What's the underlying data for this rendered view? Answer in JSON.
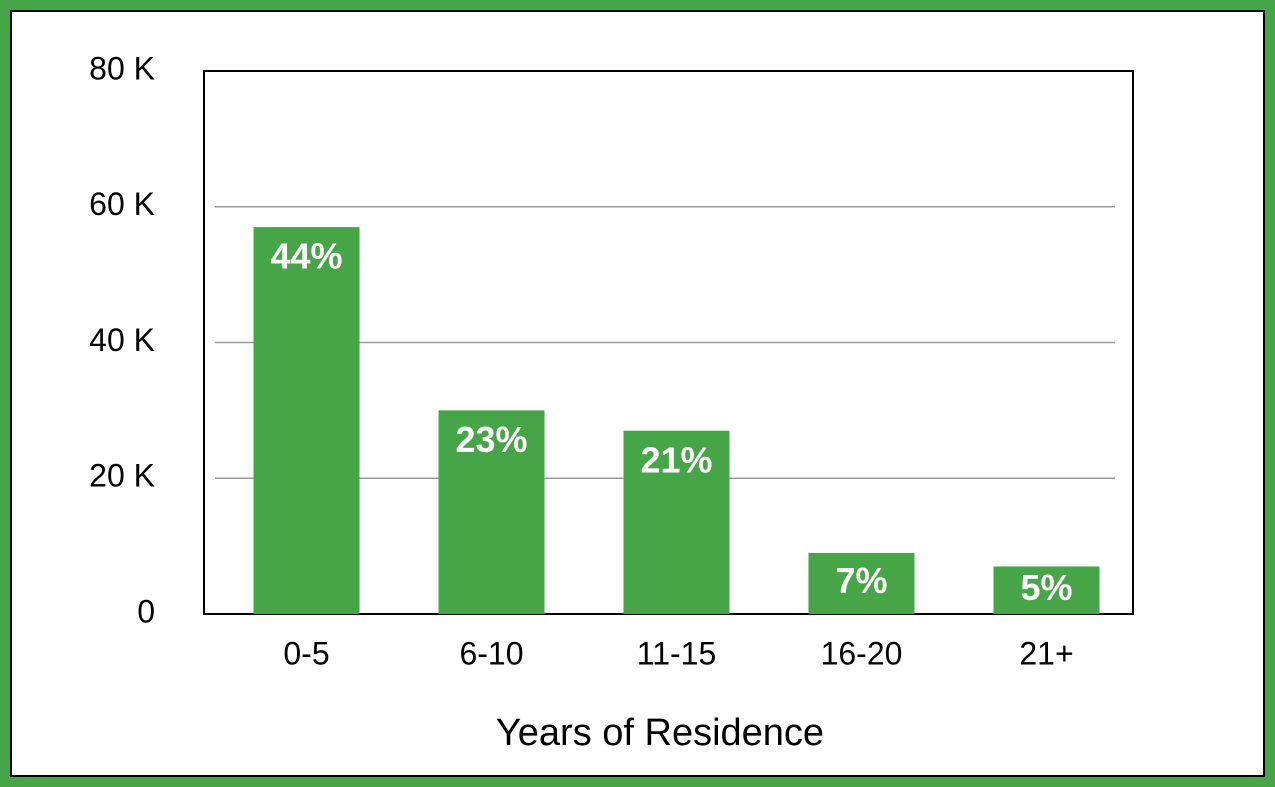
{
  "chart_data": {
    "type": "bar",
    "x_label": "Years of Residence",
    "categories": [
      "0-5",
      "6-10",
      "11-15",
      "16-20",
      "21+"
    ],
    "values": [
      57000,
      30000,
      27000,
      9000,
      7000
    ],
    "percent_labels": [
      "44%",
      "23%",
      "21%",
      "7%",
      "5%"
    ],
    "color": "#46a546",
    "ylim": [
      0,
      80000
    ],
    "yticks": [
      0,
      {
        "value": 20000,
        "label": "20 K"
      },
      {
        "value": 40000,
        "label": "40 K"
      },
      {
        "value": 60000,
        "label": "60 K"
      },
      {
        "value": 80000,
        "label": "80 K"
      }
    ],
    "grid": true
  }
}
